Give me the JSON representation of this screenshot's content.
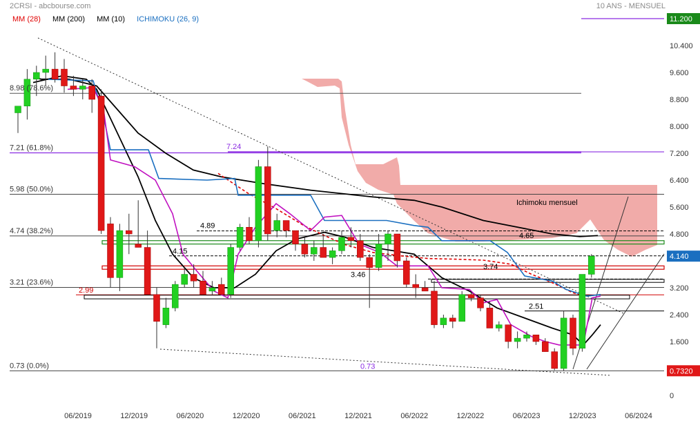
{
  "header": {
    "source": "2CRSI - abcbourse.com",
    "period": "10 ANS - MENSUEL"
  },
  "legend": [
    {
      "label": "MM (28)",
      "color": "#e00000"
    },
    {
      "label": "MM (200)",
      "color": "#000000"
    },
    {
      "label": "MM (10)",
      "color": "#000000"
    },
    {
      "label": "ICHIMOKU (26, 9)",
      "color": "#1a6fc0"
    }
  ],
  "colors": {
    "up": "#22d022",
    "down": "#e01818",
    "cloud": "#ee9c9a",
    "kijun": "#1a6fc0",
    "tenkan": "#c010c0",
    "ma200": "#000000",
    "ma10": "#000000",
    "ma28": "#e00000"
  },
  "chart_data": {
    "type": "candlestick",
    "ylim": [
      0,
      11.8
    ],
    "x_ticks": [
      "06/2019",
      "12/2019",
      "06/2020",
      "12/2020",
      "06/2021",
      "12/2021",
      "06/2022",
      "12/2022",
      "06/2023",
      "12/2023",
      "06/2024"
    ],
    "y_ticks": [
      "10.400",
      "9.600",
      "8.800",
      "8.000",
      "7.200",
      "6.400",
      "5.600",
      "4.800",
      "3.200",
      "2.400",
      "1.600",
      "0"
    ],
    "price_tags": [
      {
        "label": "11.200",
        "value": 11.2,
        "color": "#1a8a1a"
      },
      {
        "label": "4.140",
        "value": 4.14,
        "color": "#1a6fc0"
      },
      {
        "label": "0.7320",
        "value": 0.732,
        "color": "#e01818"
      }
    ],
    "fib_levels": [
      {
        "label": "8.98 (78.6%)",
        "value": 8.98
      },
      {
        "label": "7.21 (61.8%)",
        "value": 7.21
      },
      {
        "label": "5.98 (50.0%)",
        "value": 5.98
      },
      {
        "label": "4.74 (38.2%)",
        "value": 4.74
      },
      {
        "label": "3.21 (23.6%)",
        "value": 3.21
      },
      {
        "label": "0.73 (0.0%)",
        "value": 0.73
      }
    ],
    "annotations": [
      {
        "text": "7.24",
        "value": 7.24
      },
      {
        "text": "4.89",
        "value": 4.89
      },
      {
        "text": "4.15",
        "value": 4.15
      },
      {
        "text": "4.65",
        "value": 4.65
      },
      {
        "text": "3.74",
        "value": 3.74
      },
      {
        "text": "3.46",
        "value": 3.46
      },
      {
        "text": "2.99",
        "value": 2.99
      },
      {
        "text": "2.51",
        "value": 2.51
      },
      {
        "text": "0.73",
        "value": 0.73
      },
      {
        "text": "Ichimoku mensuel",
        "value": 5.6
      }
    ],
    "candles": [
      [
        8.4,
        8.6,
        7.8,
        8.6
      ],
      [
        8.6,
        9.7,
        8.2,
        9.4
      ],
      [
        9.4,
        9.8,
        8.9,
        9.6
      ],
      [
        9.6,
        10.1,
        9.2,
        9.7
      ],
      [
        9.7,
        10.2,
        9.3,
        9.4
      ],
      [
        9.7,
        10.0,
        9.0,
        9.2
      ],
      [
        9.2,
        9.5,
        8.9,
        9.1
      ],
      [
        9.1,
        9.4,
        8.8,
        9.2
      ],
      [
        9.2,
        9.4,
        8.4,
        8.8
      ],
      [
        8.9,
        9.1,
        4.8,
        4.9
      ],
      [
        5.1,
        5.3,
        3.2,
        3.5
      ],
      [
        3.5,
        5.1,
        3.1,
        4.9
      ],
      [
        4.9,
        5.4,
        4.2,
        4.8
      ],
      [
        4.5,
        5.8,
        4.4,
        4.4
      ],
      [
        4.4,
        4.9,
        3.0,
        3.0
      ],
      [
        3.0,
        3.2,
        1.4,
        2.2
      ],
      [
        2.1,
        2.9,
        2.0,
        2.6
      ],
      [
        2.6,
        3.4,
        2.5,
        3.3
      ],
      [
        3.3,
        3.8,
        3.2,
        3.6
      ],
      [
        3.6,
        3.9,
        3.2,
        3.4
      ],
      [
        3.4,
        3.7,
        3.0,
        3.0
      ],
      [
        3.1,
        3.4,
        3.0,
        3.2
      ],
      [
        3.3,
        3.5,
        3.0,
        3.0
      ],
      [
        3.0,
        4.5,
        2.9,
        4.4
      ],
      [
        4.4,
        5.1,
        4.3,
        5.0
      ],
      [
        5.0,
        5.3,
        4.5,
        4.6
      ],
      [
        4.6,
        7.0,
        4.4,
        6.8
      ],
      [
        6.8,
        7.4,
        4.6,
        4.8
      ],
      [
        4.9,
        5.4,
        4.7,
        5.2
      ],
      [
        5.2,
        5.2,
        4.7,
        4.9
      ],
      [
        4.9,
        4.9,
        4.3,
        4.5
      ],
      [
        4.5,
        4.7,
        4.1,
        4.2
      ],
      [
        4.2,
        4.6,
        4.0,
        4.4
      ],
      [
        4.4,
        4.8,
        4.1,
        4.1
      ],
      [
        4.1,
        4.4,
        3.9,
        4.3
      ],
      [
        4.3,
        4.9,
        4.2,
        4.7
      ],
      [
        4.7,
        5.0,
        4.4,
        4.6
      ],
      [
        4.6,
        4.8,
        4.0,
        4.1
      ],
      [
        4.1,
        4.2,
        2.6,
        3.8
      ],
      [
        3.8,
        4.8,
        3.7,
        4.5
      ],
      [
        4.5,
        4.9,
        4.0,
        4.8
      ],
      [
        4.8,
        4.8,
        3.8,
        4.0
      ],
      [
        4.0,
        4.1,
        3.2,
        3.3
      ],
      [
        3.3,
        3.6,
        2.9,
        3.2
      ],
      [
        3.2,
        3.4,
        3.1,
        3.1
      ],
      [
        3.1,
        3.4,
        2.0,
        2.1
      ],
      [
        2.1,
        2.4,
        2.0,
        2.3
      ],
      [
        2.3,
        2.4,
        2.0,
        2.2
      ],
      [
        2.2,
        3.1,
        2.2,
        3.0
      ],
      [
        3.0,
        3.1,
        2.8,
        2.9
      ],
      [
        2.9,
        3.0,
        2.5,
        2.6
      ],
      [
        2.6,
        2.8,
        2.0,
        2.0
      ],
      [
        2.0,
        2.2,
        1.9,
        2.1
      ],
      [
        2.1,
        2.1,
        1.4,
        1.6
      ],
      [
        1.6,
        1.9,
        1.4,
        1.7
      ],
      [
        1.7,
        1.9,
        1.6,
        1.8
      ],
      [
        1.8,
        1.8,
        1.5,
        1.6
      ],
      [
        1.6,
        1.7,
        1.3,
        1.3
      ],
      [
        1.3,
        1.4,
        0.75,
        0.8
      ],
      [
        0.8,
        2.5,
        0.73,
        2.3
      ],
      [
        2.3,
        2.4,
        1.2,
        1.4
      ],
      [
        1.4,
        3.6,
        1.3,
        3.6
      ],
      [
        3.6,
        4.2,
        3.5,
        4.14
      ]
    ],
    "series": [
      {
        "name": "MM (200)",
        "values": [
          [
            48,
            9.45
          ],
          [
            60,
            9.4
          ],
          [
            100,
            9.4
          ],
          [
            140,
            9.2
          ],
          [
            170,
            8.5
          ],
          [
            200,
            7.8
          ],
          [
            240,
            7.2
          ],
          [
            280,
            6.7
          ],
          [
            320,
            6.5
          ],
          [
            380,
            6.3
          ],
          [
            450,
            6.1
          ],
          [
            540,
            5.9
          ],
          [
            600,
            5.8
          ],
          [
            640,
            5.6
          ],
          [
            700,
            5.2
          ],
          [
            750,
            5.0
          ],
          [
            800,
            4.8
          ],
          [
            840,
            4.72
          ],
          [
            866,
            4.75
          ]
        ]
      },
      {
        "name": "MM (10)",
        "values": [
          [
            48,
            9.3
          ],
          [
            90,
            9.5
          ],
          [
            125,
            9.4
          ],
          [
            140,
            9.1
          ],
          [
            170,
            7.8
          ],
          [
            200,
            6.5
          ],
          [
            225,
            5.2
          ],
          [
            250,
            4.2
          ],
          [
            280,
            3.5
          ],
          [
            310,
            3.2
          ],
          [
            340,
            3.2
          ],
          [
            370,
            3.6
          ],
          [
            400,
            4.3
          ],
          [
            430,
            4.65
          ],
          [
            470,
            4.85
          ],
          [
            500,
            4.7
          ],
          [
            540,
            4.4
          ],
          [
            570,
            4.3
          ],
          [
            600,
            4.2
          ],
          [
            640,
            3.5
          ],
          [
            680,
            3.1
          ],
          [
            720,
            2.6
          ],
          [
            760,
            2.3
          ],
          [
            800,
            2.0
          ],
          [
            830,
            1.8
          ],
          [
            845,
            1.5
          ],
          [
            858,
            1.8
          ],
          [
            870,
            2.1
          ]
        ]
      },
      {
        "name": "MM (28)",
        "values": [
          [
            316,
            6.6
          ],
          [
            360,
            6.0
          ],
          [
            400,
            5.55
          ],
          [
            440,
            5.05
          ],
          [
            470,
            4.75
          ],
          [
            500,
            4.48
          ],
          [
            540,
            4.25
          ],
          [
            580,
            4.15
          ],
          [
            620,
            4.07
          ],
          [
            660,
            4.05
          ],
          [
            700,
            4.02
          ],
          [
            740,
            3.9
          ],
          [
            770,
            3.6
          ],
          [
            800,
            3.35
          ],
          [
            830,
            3.05
          ],
          [
            848,
            2.95
          ]
        ]
      },
      {
        "name": "ICHIMOKU Kijun",
        "values": [
          [
            70,
            9.4
          ],
          [
            135,
            9.35
          ],
          [
            150,
            8.3
          ],
          [
            160,
            7.3
          ],
          [
            215,
            7.3
          ],
          [
            230,
            6.45
          ],
          [
            300,
            6.4
          ],
          [
            340,
            6.45
          ],
          [
            345,
            5.95
          ],
          [
            450,
            5.95
          ],
          [
            470,
            5.2
          ],
          [
            560,
            5.2
          ],
          [
            600,
            5.05
          ],
          [
            620,
            5.0
          ],
          [
            640,
            4.6
          ],
          [
            710,
            4.6
          ],
          [
            735,
            4.25
          ],
          [
            760,
            3.55
          ],
          [
            800,
            3.4
          ],
          [
            820,
            3.15
          ],
          [
            850,
            2.95
          ],
          [
            870,
            3.0
          ]
        ]
      },
      {
        "name": "ICHIMOKU Tenkan",
        "values": [
          [
            98,
            9.1
          ],
          [
            135,
            9.15
          ],
          [
            150,
            8.5
          ],
          [
            160,
            7.0
          ],
          [
            195,
            6.8
          ],
          [
            225,
            6.4
          ],
          [
            250,
            5.4
          ],
          [
            265,
            4.2
          ],
          [
            285,
            3.7
          ],
          [
            310,
            3.1
          ],
          [
            330,
            2.9
          ],
          [
            345,
            4.2
          ],
          [
            370,
            5.0
          ],
          [
            400,
            5.7
          ],
          [
            420,
            5.4
          ],
          [
            450,
            4.9
          ],
          [
            470,
            5.3
          ],
          [
            495,
            5.35
          ],
          [
            520,
            4.5
          ],
          [
            550,
            4.25
          ],
          [
            575,
            3.85
          ],
          [
            620,
            3.85
          ],
          [
            640,
            3.2
          ],
          [
            680,
            3.15
          ],
          [
            700,
            2.75
          ],
          [
            720,
            2.85
          ],
          [
            740,
            2.1
          ],
          [
            770,
            1.75
          ],
          [
            790,
            1.6
          ],
          [
            810,
            1.5
          ],
          [
            830,
            1.5
          ],
          [
            845,
            1.5
          ],
          [
            858,
            2.9
          ],
          [
            870,
            2.95
          ]
        ]
      }
    ]
  }
}
